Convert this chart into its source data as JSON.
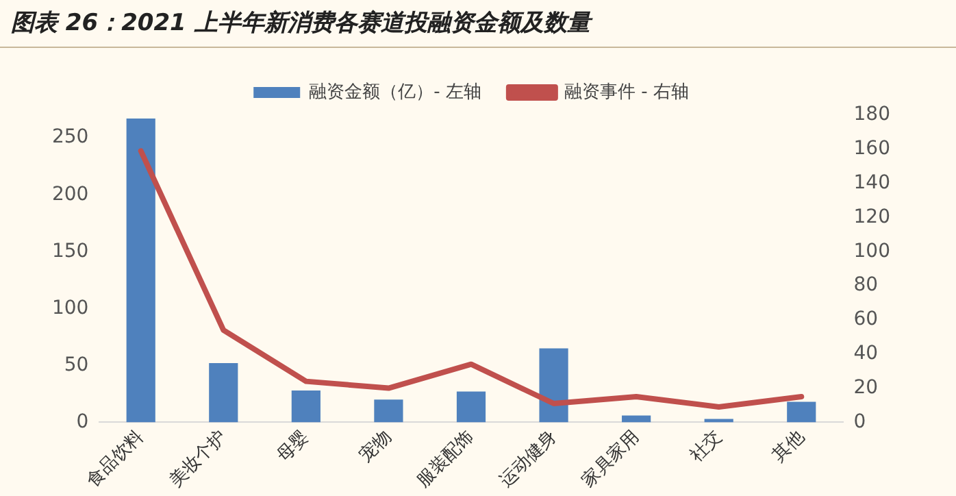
{
  "chart_data": {
    "type": "bar",
    "title": "图表 26：2021 上半年新消费各赛道投融资金额及数量",
    "categories": [
      "食品饮料",
      "美妆个护",
      "母婴",
      "宠物",
      "服装配饰",
      "运动健身",
      "家具家用",
      "社交",
      "其他"
    ],
    "series": [
      {
        "name": "融资金额（亿）- 左轴",
        "color": "#4f81bd",
        "values": [
          267,
          52,
          28,
          20,
          27,
          65,
          6,
          3,
          18
        ]
      },
      {
        "name": "融资事件 - 右轴",
        "type": "line",
        "axis": "y2",
        "color": "#c0504d",
        "values": [
          159,
          54,
          24,
          20,
          34,
          11,
          15,
          9,
          15
        ]
      }
    ],
    "ylim": [
      0,
      270
    ],
    "yticks": [
      0,
      50,
      100,
      150,
      200,
      250
    ],
    "y2lim": [
      0,
      180
    ],
    "y2ticks": [
      0,
      20,
      40,
      60,
      80,
      100,
      120,
      140,
      160,
      180
    ],
    "grid": false,
    "legend": "top",
    "marker": "none"
  }
}
